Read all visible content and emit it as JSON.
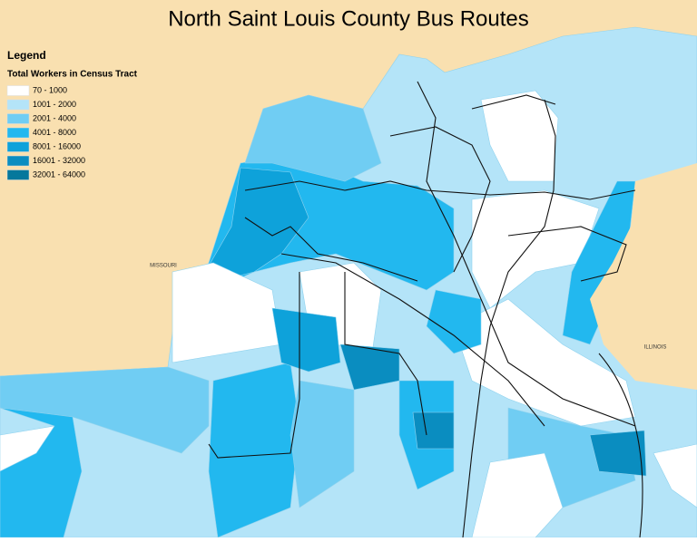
{
  "header": {
    "title": "North Saint Louis County Bus Routes"
  },
  "legend": {
    "heading": "Legend",
    "title": "Total Workers in Census Tract",
    "items": [
      {
        "label": "70 - 1000",
        "color": "#ffffff"
      },
      {
        "label": "1001 - 2000",
        "color": "#b4e4f8"
      },
      {
        "label": "2001 - 4000",
        "color": "#70cdf3"
      },
      {
        "label": "4001 - 8000",
        "color": "#22b8ef"
      },
      {
        "label": "8001 - 16000",
        "color": "#0ea2da"
      },
      {
        "label": "16001 - 32000",
        "color": "#0a8dc0"
      },
      {
        "label": "32001 - 64000",
        "color": "#06789c"
      }
    ]
  },
  "labels": {
    "missouri": "MISSOURI",
    "illinois": "ILLINOIS"
  }
}
